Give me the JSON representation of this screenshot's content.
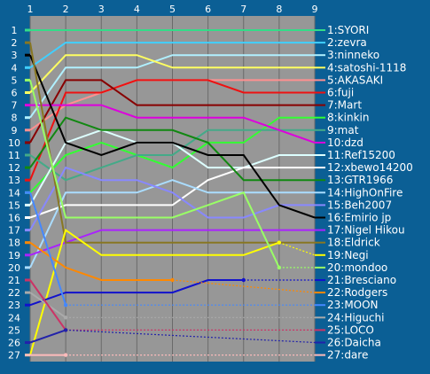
{
  "chart_data": {
    "type": "line",
    "x": [
      1,
      2,
      3,
      4,
      5,
      6,
      7,
      8,
      9
    ],
    "y_ticks": [
      1,
      2,
      3,
      4,
      5,
      6,
      7,
      8,
      9,
      10,
      11,
      12,
      13,
      14,
      15,
      16,
      17,
      18,
      19,
      20,
      21,
      22,
      23,
      24,
      25,
      26,
      27
    ],
    "ylim": [
      1,
      27
    ],
    "y_inverted": true,
    "grid": true,
    "plot_background": "#979797",
    "page_background": "#0b5f95",
    "series": [
      {
        "name": "1:SYORI",
        "color": "#33dd88",
        "ranks": [
          1,
          1,
          1,
          1,
          1,
          1,
          1,
          1,
          1
        ]
      },
      {
        "name": "2:zevra",
        "color": "#40cfff",
        "ranks": [
          4,
          2,
          2,
          2,
          2,
          2,
          2,
          2,
          2
        ]
      },
      {
        "name": "3:ninneko",
        "color": "#b0f0ff",
        "ranks": [
          8,
          4,
          4,
          4,
          3,
          3,
          3,
          3,
          3
        ]
      },
      {
        "name": "4:satoshi-1118",
        "color": "#ffff60",
        "ranks": [
          6,
          3,
          3,
          3,
          4,
          4,
          4,
          4,
          4
        ]
      },
      {
        "name": "5:AKASAKI",
        "color": "#ff9090",
        "ranks": [
          9,
          7,
          6,
          5,
          5,
          5,
          5,
          5,
          5
        ]
      },
      {
        "name": "6:fuji",
        "color": "#ee1111",
        "ranks": [
          13,
          6,
          6,
          5,
          5,
          5,
          6,
          6,
          6
        ]
      },
      {
        "name": "7:Mart",
        "color": "#880000",
        "ranks": [
          10,
          5,
          5,
          7,
          7,
          7,
          7,
          7,
          7
        ]
      },
      {
        "name": "8:kinkin",
        "color": "#33ff33",
        "ranks": [
          14,
          11,
          10,
          11,
          12,
          10,
          10,
          8,
          8
        ]
      },
      {
        "name": "9:mat",
        "color": "#44aa88",
        "ranks": [
          11,
          13,
          12,
          11,
          11,
          9,
          9,
          9,
          9
        ]
      },
      {
        "name": "10:dzd",
        "color": "#dd00dd",
        "ranks": [
          7,
          7,
          7,
          8,
          8,
          8,
          8,
          9,
          10
        ]
      },
      {
        "name": "11:Ref15200",
        "color": "#ddffff",
        "ranks": [
          15,
          10,
          9,
          10,
          10,
          12,
          12,
          11,
          11
        ]
      },
      {
        "name": "12:xbewo14200",
        "color": "#ffffff",
        "ranks": [
          16,
          15,
          15,
          15,
          15,
          13,
          12,
          12,
          12
        ]
      },
      {
        "name": "13:GTR1966",
        "color": "#118811",
        "ranks": [
          12,
          8,
          9,
          9,
          9,
          10,
          13,
          13,
          13
        ]
      },
      {
        "name": "14:HighOnFire",
        "color": "#aaddff",
        "ranks": [
          20,
          14,
          14,
          14,
          13,
          14,
          14,
          14,
          14
        ]
      },
      {
        "name": "15:Beh2007",
        "color": "#8888ff",
        "ranks": [
          17,
          12,
          13,
          13,
          14,
          16,
          16,
          15,
          15
        ]
      },
      {
        "name": "16:Emirio jp",
        "color": "#000000",
        "ranks": [
          3,
          10,
          11,
          10,
          10,
          11,
          11,
          15,
          16
        ]
      },
      {
        "name": "17:Nigel Hikou",
        "color": "#aa22ff",
        "ranks": [
          19,
          18,
          17,
          17,
          17,
          17,
          17,
          17,
          17
        ]
      },
      {
        "name": "18:Eldrick",
        "color": "#887722",
        "ranks": [
          2,
          18,
          18,
          18,
          18,
          18,
          18,
          18,
          18
        ]
      },
      {
        "name": "19:Negi",
        "color": "#ffff00",
        "ranks": [
          27,
          17,
          19,
          19,
          19,
          19,
          19,
          18,
          null
        ]
      },
      {
        "name": "20:mondoo",
        "color": "#99ff66",
        "ranks": [
          5,
          16,
          16,
          16,
          16,
          15,
          14,
          20,
          null
        ]
      },
      {
        "name": "21:Bresciano",
        "color": "#1111cc",
        "ranks": [
          23,
          22,
          22,
          22,
          22,
          21,
          21,
          null,
          null
        ]
      },
      {
        "name": "22:Rodgers",
        "color": "#ff8800",
        "ranks": [
          18,
          20,
          21,
          21,
          21,
          null,
          null,
          null,
          null
        ]
      },
      {
        "name": "23:MOON",
        "color": "#4488ff",
        "ranks": [
          14,
          23,
          null,
          null,
          null,
          null,
          null,
          null,
          null
        ]
      },
      {
        "name": "24:Higuchi",
        "color": "#aaaaaa",
        "ranks": [
          22,
          24,
          null,
          null,
          null,
          null,
          null,
          null,
          null
        ]
      },
      {
        "name": "25:LOCO",
        "color": "#cc3366",
        "ranks": [
          21,
          25,
          null,
          null,
          null,
          null,
          null,
          null,
          null
        ]
      },
      {
        "name": "26:Daicha",
        "color": "#2222aa",
        "ranks": [
          26,
          25,
          null,
          null,
          null,
          null,
          null,
          null,
          null
        ]
      },
      {
        "name": "27:dare",
        "color": "#ffbbbb",
        "ranks": [
          27,
          27,
          null,
          null,
          null,
          null,
          null,
          null,
          null
        ]
      }
    ]
  }
}
